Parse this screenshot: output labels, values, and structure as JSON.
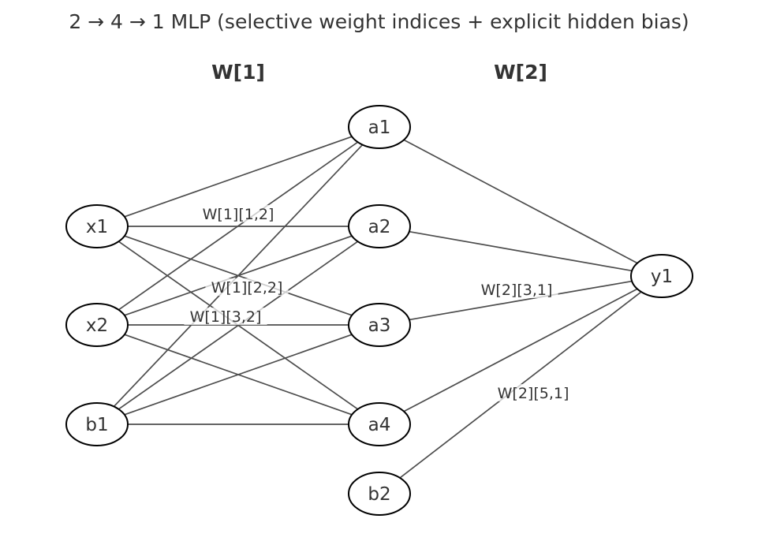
{
  "title": "2 → 4 → 1 MLP (selective weight indices + explicit hidden bias)",
  "layer_headers": {
    "w1": "W[1]",
    "w2": "W[2]"
  },
  "nodes": [
    {
      "id": "x1",
      "label": "x1"
    },
    {
      "id": "x2",
      "label": "x2"
    },
    {
      "id": "b1",
      "label": "b1"
    },
    {
      "id": "a1",
      "label": "a1"
    },
    {
      "id": "a2",
      "label": "a2"
    },
    {
      "id": "a3",
      "label": "a3"
    },
    {
      "id": "a4",
      "label": "a4"
    },
    {
      "id": "b2",
      "label": "b2"
    },
    {
      "id": "y1",
      "label": "y1"
    }
  ],
  "edges": [
    {
      "from": "x1",
      "to": "a1"
    },
    {
      "from": "x1",
      "to": "a2",
      "label": "W[1][1,2]"
    },
    {
      "from": "x1",
      "to": "a3"
    },
    {
      "from": "x1",
      "to": "a4"
    },
    {
      "from": "x2",
      "to": "a1"
    },
    {
      "from": "x2",
      "to": "a2",
      "label": "W[1][2,2]"
    },
    {
      "from": "x2",
      "to": "a3"
    },
    {
      "from": "x2",
      "to": "a4"
    },
    {
      "from": "b1",
      "to": "a1"
    },
    {
      "from": "b1",
      "to": "a2",
      "label": "W[1][3,2]"
    },
    {
      "from": "b1",
      "to": "a3"
    },
    {
      "from": "b1",
      "to": "a4"
    },
    {
      "from": "a1",
      "to": "y1"
    },
    {
      "from": "a2",
      "to": "y1"
    },
    {
      "from": "a3",
      "to": "y1",
      "label": "W[2][3,1]"
    },
    {
      "from": "a4",
      "to": "y1"
    },
    {
      "from": "b2",
      "to": "y1",
      "label": "W[2][5,1]"
    }
  ]
}
